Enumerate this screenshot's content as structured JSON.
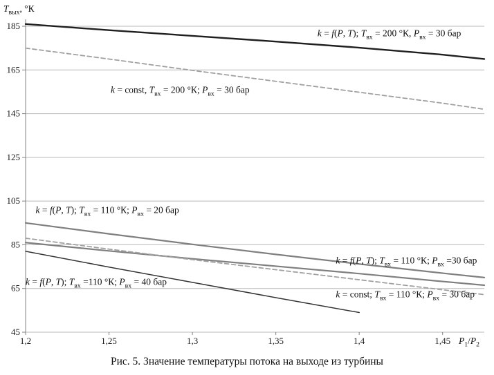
{
  "figure": {
    "caption": "Рис. 5. Значение температуры потока на выходе из турбины"
  },
  "chart_data": {
    "type": "line",
    "title": "",
    "grid": "horizontal",
    "x_axis": {
      "label": "P_1/P_2",
      "min": 1.2,
      "max": 1.475,
      "tick_labels": [
        "1,2",
        "1,25",
        "1,3",
        "1,35",
        "1,4",
        "1,45"
      ],
      "tick_values": [
        1.2,
        1.25,
        1.3,
        1.35,
        1.4,
        1.45
      ]
    },
    "y_axis": {
      "label": "T_вых, °К",
      "min": 45,
      "max": 185,
      "ticks": [
        45,
        65,
        85,
        105,
        125,
        145,
        165,
        185
      ]
    },
    "series": [
      {
        "name": "k = f(P, T); T_вх = 200 °К, P_вх = 30 бар",
        "color": "#1f1f1f",
        "width": 2.4,
        "dash": null,
        "x": [
          1.2,
          1.25,
          1.3,
          1.35,
          1.4,
          1.45,
          1.475
        ],
        "y": [
          186,
          183.2,
          180.6,
          178,
          175.2,
          172,
          170
        ]
      },
      {
        "name": "k = const, T_вх = 200 °К; P_вх = 30 бар",
        "color": "#a0a0a0",
        "width": 1.8,
        "dash": "6 4",
        "x": [
          1.2,
          1.25,
          1.3,
          1.35,
          1.4,
          1.45,
          1.475
        ],
        "y": [
          175,
          170,
          164.8,
          159.8,
          154.8,
          149.8,
          147
        ]
      },
      {
        "name": "k = f(P, T); T_вх = 110 °К; P_вх = 20 бар",
        "color": "#7f7f7f",
        "width": 2.2,
        "dash": null,
        "x": [
          1.2,
          1.25,
          1.3,
          1.35,
          1.4,
          1.45,
          1.475
        ],
        "y": [
          95,
          90,
          85.2,
          80.6,
          76.2,
          72,
          70
        ]
      },
      {
        "name": "k = f(P, T); T_вх = 110 °К; P_вх =30 бар",
        "color": "#7f7f7f",
        "width": 2.2,
        "dash": null,
        "x": [
          1.2,
          1.25,
          1.3,
          1.35,
          1.4,
          1.45,
          1.475
        ],
        "y": [
          86,
          82.2,
          78.6,
          75.2,
          71.8,
          68.2,
          66.5
        ]
      },
      {
        "name": "k = const; T_вх = 110 °К; P_вх = 30 бар",
        "color": "#a0a0a0",
        "width": 1.8,
        "dash": "6 4",
        "x": [
          1.2,
          1.25,
          1.3,
          1.35,
          1.4,
          1.45,
          1.475
        ],
        "y": [
          88,
          83,
          78.2,
          73.6,
          69,
          64.4,
          62.2
        ]
      },
      {
        "name": "k = f(P, T); T_вх =110 °К; P_вх = 40 бар",
        "color": "#333333",
        "width": 1.5,
        "dash": null,
        "x": [
          1.2,
          1.25,
          1.3,
          1.35,
          1.4
        ],
        "y": [
          82,
          74.8,
          67.8,
          60.8,
          54
        ]
      }
    ],
    "annotations": [
      {
        "x": 1.375,
        "y": 181,
        "text": "k = f(P, T); T_вх = 200 °К, P_вх = 30 бар"
      },
      {
        "x": 1.251,
        "y": 155,
        "text": "k = const, T_вх = 200 °К; P_вх = 30 бар"
      },
      {
        "x": 1.206,
        "y": 100,
        "text": "k = f(P, T); T_вх = 110 °К; P_вх = 20 бар"
      },
      {
        "x": 1.386,
        "y": 77,
        "text": "k = f(P, T); T_вх = 110 °К; P_вх =30 бар"
      },
      {
        "x": 1.386,
        "y": 61.5,
        "text": "k = const; T_вх = 110 °К; P_вх = 30 бар"
      },
      {
        "x": 1.2,
        "y": 67,
        "text": "k = f(P, T); T_вх =110 °К; P_вх = 40 бар"
      }
    ]
  }
}
